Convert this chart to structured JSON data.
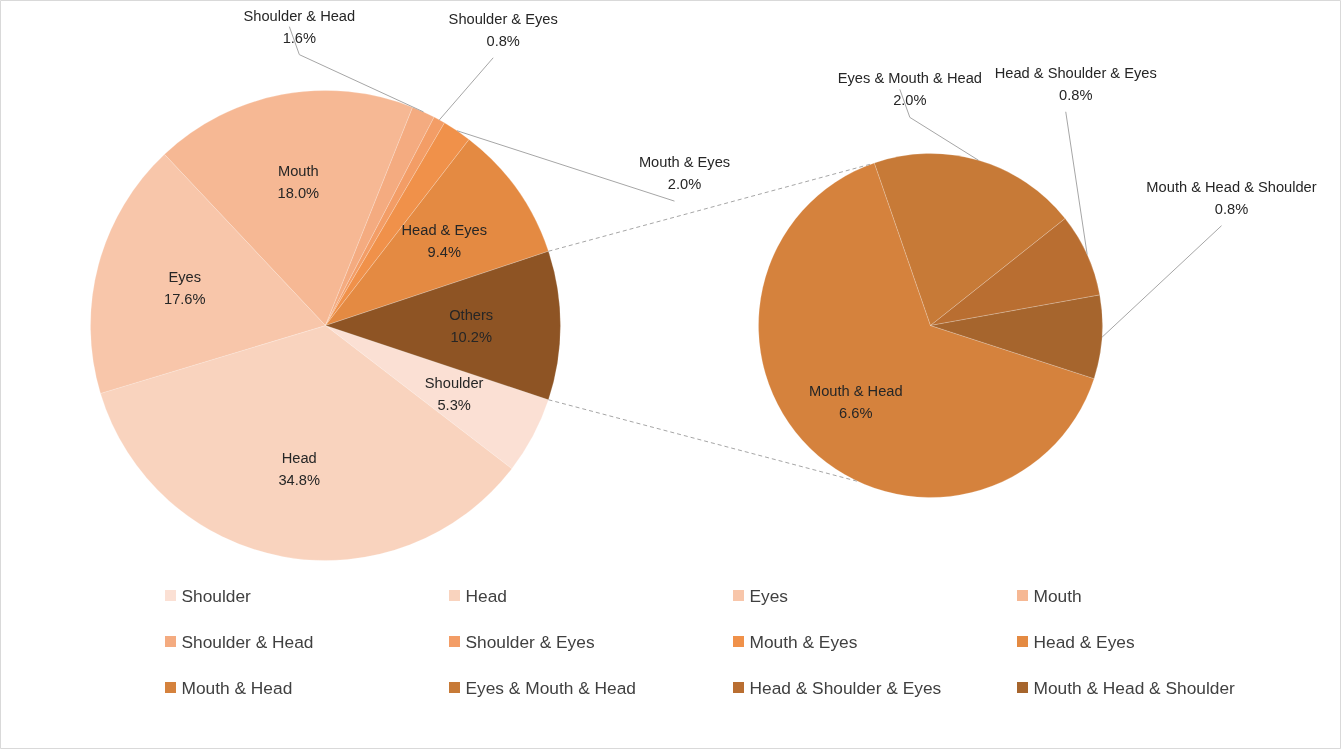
{
  "chart_data": [
    {
      "type": "pie",
      "categories": [
        "Shoulder",
        "Head",
        "Eyes",
        "Mouth",
        "Shoulder & Head",
        "Shoulder & Eyes",
        "Mouth & Eyes",
        "Head & Eyes",
        "Others"
      ],
      "values": [
        5.3,
        34.8,
        17.6,
        18.0,
        1.6,
        0.8,
        2.0,
        9.4,
        10.2
      ],
      "value_labels": [
        "5.3%",
        "34.8%",
        "17.6%",
        "18.0%",
        "1.6%",
        "0.8%",
        "2.0%",
        "9.4%",
        "10.2%"
      ],
      "colors": [
        "#fbe0d4",
        "#f9d3be",
        "#f8c6aa",
        "#f6b894",
        "#f4ab80",
        "#f39d66",
        "#f0914a",
        "#e48a42",
        "#8e5424"
      ],
      "legend": "bottom"
    },
    {
      "type": "pie",
      "categories": [
        "Mouth & Head",
        "Eyes & Mouth & Head",
        "Head & Shoulder & Eyes",
        "Mouth & Head & Shoulder"
      ],
      "values": [
        6.6,
        2.0,
        0.8,
        0.8
      ],
      "value_labels": [
        "6.6%",
        "2.0%",
        "0.8%",
        "0.8%"
      ],
      "colors": [
        "#d5823d",
        "#c77a37",
        "#b96e31",
        "#a6652d"
      ],
      "legend": "bottom"
    }
  ]
}
